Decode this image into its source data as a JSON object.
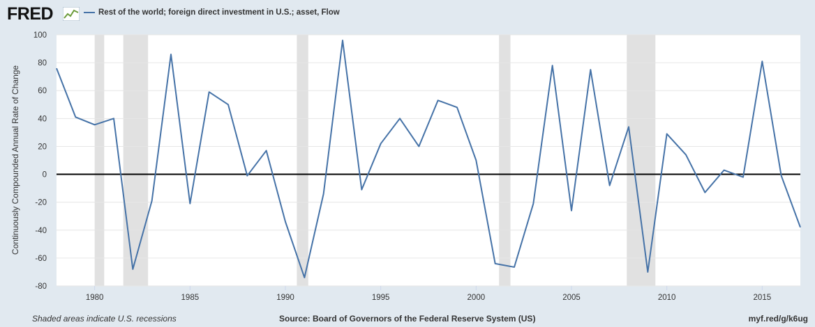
{
  "header": {
    "logo_text": "FRED",
    "legend_label": "Rest of the world; foreign direct investment in U.S.; asset, Flow",
    "series_color": "#4572a7"
  },
  "footer": {
    "recession_note": "Shaded areas indicate U.S. recessions",
    "source": "Source: Board of Governors of the Federal Reserve System (US)",
    "short_url": "myf.red/g/k6ug"
  },
  "chart_data": {
    "type": "line",
    "title": "",
    "xlabel": "",
    "ylabel": "Continuously Compounded Annual Rate of Change",
    "xlim": [
      1978,
      2017
    ],
    "ylim": [
      -80,
      100
    ],
    "yticks": [
      100,
      80,
      60,
      40,
      20,
      0,
      -20,
      -40,
      -60,
      -80
    ],
    "xticks": [
      1980,
      1985,
      1990,
      1995,
      2000,
      2005,
      2010,
      2015
    ],
    "grid": true,
    "legend_position": "top-left",
    "recessions": [
      [
        1980.0,
        1980.5
      ],
      [
        1981.5,
        1982.8
      ],
      [
        1990.6,
        1991.2
      ],
      [
        2001.2,
        2001.8
      ],
      [
        2007.9,
        2009.4
      ]
    ],
    "series": [
      {
        "name": "Rest of the world; foreign direct investment in U.S.; asset, Flow",
        "color": "#4572a7",
        "x": [
          1978,
          1979,
          1980,
          1981,
          1982,
          1983,
          1984,
          1985,
          1986,
          1987,
          1988,
          1989,
          1990,
          1991,
          1992,
          1993,
          1994,
          1995,
          1996,
          1997,
          1998,
          1999,
          2000,
          2001,
          2002,
          2003,
          2004,
          2005,
          2006,
          2007,
          2008,
          2009,
          2010,
          2011,
          2012,
          2013,
          2014,
          2015,
          2016,
          2017
        ],
        "values": [
          76,
          41,
          35.5,
          40,
          -68,
          -19,
          86,
          -21,
          59,
          50,
          -1,
          17,
          -34,
          -74,
          -14,
          96,
          -11,
          22,
          40,
          20,
          53,
          48,
          10,
          -64,
          -66.5,
          -21,
          78,
          -26,
          75,
          -8,
          34,
          -70,
          29,
          14,
          -13,
          3,
          -2,
          81,
          -1,
          -38
        ]
      }
    ]
  }
}
